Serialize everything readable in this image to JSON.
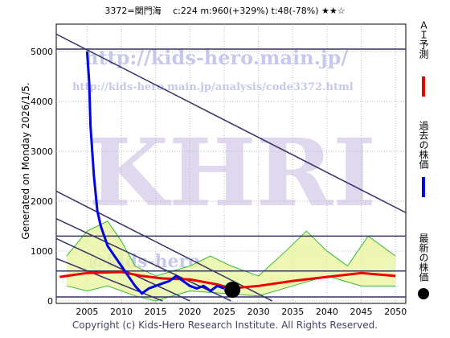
{
  "chart_data": {
    "type": "line",
    "title": "3372=関門海　 c:224  m:960(+329%)  t:48(-78%)  ★★☆",
    "subtitle": "Generated on Monday 2026/1/5.",
    "footer": "Copyright (c) Kids-Hero Research Institute. All Rights Reserved.",
    "watermarks": [
      "http://kids-hero.main.jp/",
      "http://kids-hero.main.jp/analysis/code3372.html",
      "KHRI",
      "@kids-hero"
    ],
    "xlim": [
      2000.5,
      2051.5
    ],
    "ylim": [
      -50,
      5550
    ],
    "xticks": [
      2005,
      2010,
      2015,
      2020,
      2025,
      2030,
      2035,
      2040,
      2045,
      2050
    ],
    "yticks": [
      0,
      1000,
      2000,
      3000,
      4000,
      5000
    ],
    "grid": true,
    "band": {
      "color": "#e8f5a0",
      "upper": {
        "color": "#33bb33",
        "x": [
          2002,
          2005,
          2008,
          2010,
          2012,
          2015,
          2020,
          2023,
          2026,
          2030,
          2034,
          2037,
          2040,
          2043,
          2046,
          2050
        ],
        "values": [
          900,
          1400,
          1600,
          1200,
          700,
          500,
          700,
          900,
          700,
          500,
          1000,
          1400,
          1000,
          700,
          1300,
          900
        ]
      },
      "lower": {
        "color": "#33bb33",
        "x": [
          2002,
          2005,
          2008,
          2012,
          2015,
          2020,
          2025,
          2030,
          2035,
          2040,
          2045,
          2050
        ],
        "values": [
          300,
          200,
          300,
          100,
          0,
          200,
          150,
          100,
          300,
          500,
          300,
          300
        ]
      }
    },
    "reference_lines": [
      {
        "color": "#333366",
        "x": [
          2000.5,
          2051.5
        ],
        "values": [
          5050,
          5050
        ]
      },
      {
        "color": "#333366",
        "x": [
          2000.5,
          2051.5
        ],
        "values": [
          1300,
          1300
        ]
      },
      {
        "color": "#333366",
        "x": [
          2000.5,
          2051.5
        ],
        "values": [
          600,
          600
        ]
      },
      {
        "color": "#333366",
        "x": [
          2000.5,
          2051.5
        ],
        "values": [
          80,
          80
        ]
      },
      {
        "color": "#333366",
        "x": [
          2000.5,
          2051.5
        ],
        "values": [
          5350,
          1770
        ]
      },
      {
        "color": "#333366",
        "x": [
          2000.5,
          2032
        ],
        "values": [
          2200,
          0
        ]
      },
      {
        "color": "#333366",
        "x": [
          2000.5,
          2026
        ],
        "values": [
          1650,
          0
        ]
      },
      {
        "color": "#333366",
        "x": [
          2000.5,
          2020
        ],
        "values": [
          1250,
          0
        ]
      },
      {
        "color": "#333366",
        "x": [
          2000.5,
          2016
        ],
        "values": [
          850,
          0
        ]
      }
    ],
    "series": [
      {
        "name": "ＡＩ予測",
        "color": "#ee0000",
        "width": 3,
        "x": [
          2001,
          2005,
          2010,
          2013,
          2016,
          2020,
          2024,
          2026,
          2030,
          2035,
          2040,
          2045,
          2050
        ],
        "values": [
          480,
          560,
          580,
          500,
          450,
          430,
          330,
          250,
          300,
          400,
          480,
          560,
          500
        ]
      },
      {
        "name": "過去の株価",
        "color": "#0000ee",
        "width": 3,
        "x": [
          2005,
          2005.3,
          2005.5,
          2006,
          2006.5,
          2007,
          2008,
          2009,
          2010,
          2011,
          2012,
          2013,
          2014,
          2015,
          2016,
          2017,
          2018,
          2019,
          2020,
          2021,
          2022,
          2023,
          2024,
          2025
        ],
        "values": [
          5000,
          4400,
          3500,
          2500,
          1800,
          1500,
          1100,
          900,
          700,
          500,
          300,
          150,
          250,
          300,
          350,
          400,
          500,
          400,
          300,
          250,
          300,
          200,
          300,
          250
        ]
      },
      {
        "name": "最新の株価",
        "color": "#000000",
        "marker": "dot",
        "x": [
          2026.2
        ],
        "values": [
          224
        ]
      }
    ]
  }
}
